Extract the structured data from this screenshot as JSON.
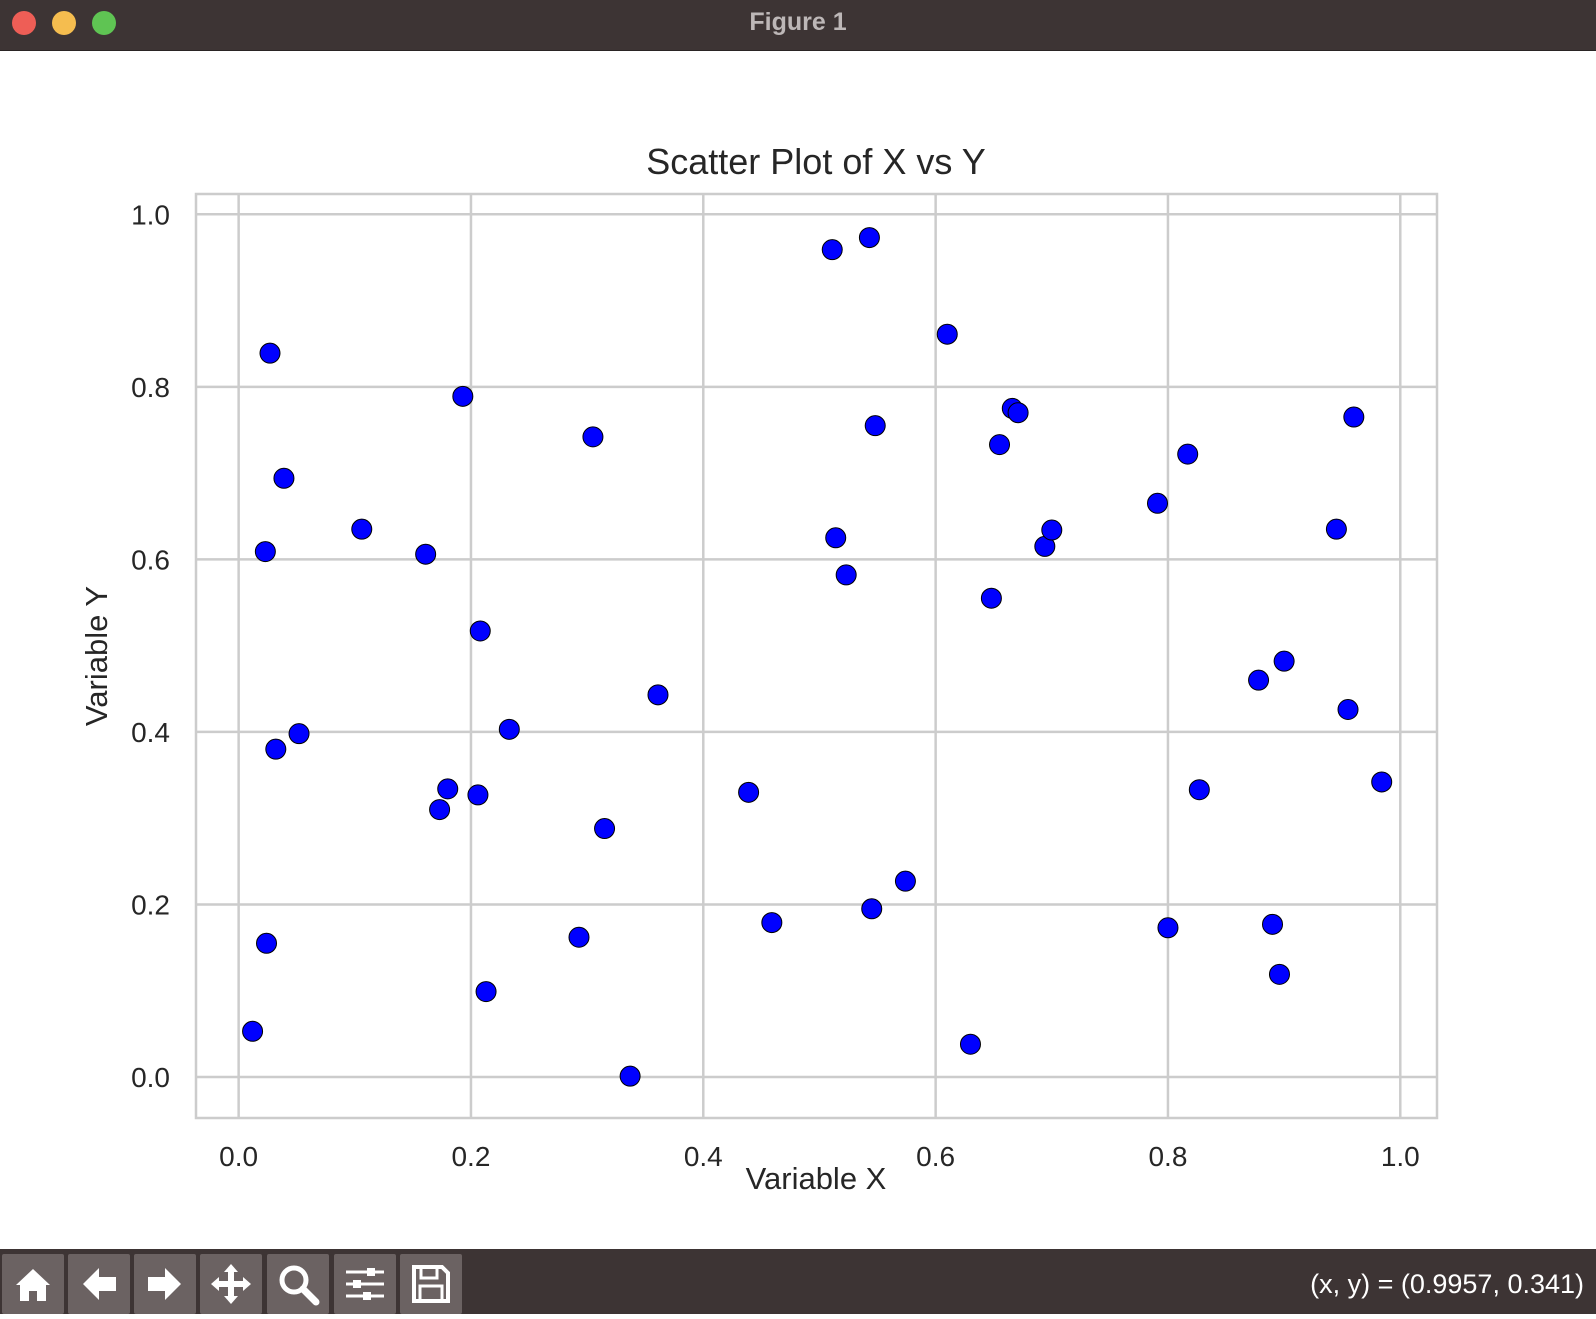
{
  "window": {
    "title": "Figure 1"
  },
  "toolbar": {
    "tools": [
      {
        "name": "home-button",
        "icon": "home-icon"
      },
      {
        "name": "back-button",
        "icon": "arrow-left-icon"
      },
      {
        "name": "forward-button",
        "icon": "arrow-right-icon"
      },
      {
        "name": "pan-button",
        "icon": "move-icon"
      },
      {
        "name": "zoom-button",
        "icon": "magnifier-icon"
      },
      {
        "name": "configure-subplots-button",
        "icon": "sliders-icon"
      },
      {
        "name": "save-button",
        "icon": "floppy-disk-icon"
      }
    ],
    "coords": "(x, y) = (0.9957, 0.341)"
  },
  "chart_data": {
    "type": "scatter",
    "title": "Scatter Plot of X vs Y",
    "xlabel": "Variable X",
    "ylabel": "Variable Y",
    "xlim": [
      -0.0367,
      1.0316
    ],
    "ylim": [
      -0.0475,
      1.0235
    ],
    "xticks": [
      0.0,
      0.2,
      0.4,
      0.6,
      0.8,
      1.0
    ],
    "yticks": [
      0.0,
      0.2,
      0.4,
      0.6,
      0.8,
      1.0
    ],
    "tick_labels_x": [
      "0.0",
      "0.2",
      "0.4",
      "0.6",
      "0.8",
      "1.0"
    ],
    "tick_labels_y": [
      "0.0",
      "0.2",
      "0.4",
      "0.6",
      "0.8",
      "1.0"
    ],
    "grid": true,
    "marker_color": "#0000ff",
    "marker_edge": "#000000",
    "points": [
      [
        0.012,
        0.053
      ],
      [
        0.024,
        0.155
      ],
      [
        0.027,
        0.839
      ],
      [
        0.023,
        0.609
      ],
      [
        0.032,
        0.38
      ],
      [
        0.039,
        0.694
      ],
      [
        0.052,
        0.398
      ],
      [
        0.106,
        0.635
      ],
      [
        0.161,
        0.606
      ],
      [
        0.173,
        0.31
      ],
      [
        0.18,
        0.334
      ],
      [
        0.193,
        0.789
      ],
      [
        0.206,
        0.327
      ],
      [
        0.208,
        0.517
      ],
      [
        0.213,
        0.099
      ],
      [
        0.233,
        0.403
      ],
      [
        0.293,
        0.162
      ],
      [
        0.305,
        0.742
      ],
      [
        0.315,
        0.288
      ],
      [
        0.337,
        0.001
      ],
      [
        0.361,
        0.443
      ],
      [
        0.439,
        0.33
      ],
      [
        0.459,
        0.179
      ],
      [
        0.511,
        0.959
      ],
      [
        0.514,
        0.625
      ],
      [
        0.523,
        0.582
      ],
      [
        0.543,
        0.973
      ],
      [
        0.545,
        0.195
      ],
      [
        0.548,
        0.755
      ],
      [
        0.574,
        0.227
      ],
      [
        0.61,
        0.861
      ],
      [
        0.63,
        0.038
      ],
      [
        0.648,
        0.555
      ],
      [
        0.655,
        0.733
      ],
      [
        0.666,
        0.775
      ],
      [
        0.671,
        0.77
      ],
      [
        0.694,
        0.615
      ],
      [
        0.7,
        0.634
      ],
      [
        0.791,
        0.665
      ],
      [
        0.8,
        0.173
      ],
      [
        0.817,
        0.722
      ],
      [
        0.827,
        0.333
      ],
      [
        0.878,
        0.46
      ],
      [
        0.89,
        0.177
      ],
      [
        0.896,
        0.119
      ],
      [
        0.9,
        0.482
      ],
      [
        0.945,
        0.635
      ],
      [
        0.955,
        0.426
      ],
      [
        0.96,
        0.765
      ],
      [
        0.984,
        0.342
      ]
    ]
  }
}
